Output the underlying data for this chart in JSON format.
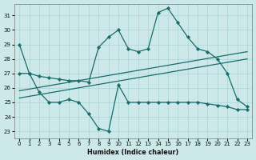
{
  "xlabel": "Humidex (Indice chaleur)",
  "bg_color": "#cce8e8",
  "line_color": "#1a6b6b",
  "grid_color": "#aad4d4",
  "ylim": [
    22.5,
    31.8
  ],
  "xlim": [
    -0.5,
    23.5
  ],
  "yticks": [
    23,
    24,
    25,
    26,
    27,
    28,
    29,
    30,
    31
  ],
  "xticks": [
    0,
    1,
    2,
    3,
    4,
    5,
    6,
    7,
    8,
    9,
    10,
    11,
    12,
    13,
    14,
    15,
    16,
    17,
    18,
    19,
    20,
    21,
    22,
    23
  ],
  "upper_x": [
    0,
    1,
    2,
    3,
    4,
    5,
    6,
    7,
    8,
    9,
    10,
    11,
    12,
    13,
    14,
    15,
    16,
    17,
    18,
    19,
    20,
    21,
    22,
    23
  ],
  "upper_y": [
    29.0,
    27.0,
    26.8,
    26.7,
    26.6,
    26.5,
    26.5,
    26.4,
    28.8,
    29.5,
    30.0,
    28.7,
    28.5,
    28.7,
    31.2,
    31.5,
    30.5,
    29.5,
    28.7,
    28.5,
    28.0,
    27.0,
    25.2,
    24.7
  ],
  "lower_x": [
    0,
    1,
    2,
    3,
    4,
    5,
    6,
    7,
    8,
    9,
    10,
    11,
    12,
    13,
    14,
    15,
    16,
    17,
    18,
    19,
    20,
    21,
    22,
    23
  ],
  "lower_y": [
    27.0,
    27.0,
    25.7,
    25.0,
    25.0,
    25.2,
    25.0,
    24.2,
    23.2,
    23.0,
    26.2,
    25.0,
    25.0,
    25.0,
    25.0,
    25.0,
    25.0,
    25.0,
    25.0,
    24.9,
    24.8,
    24.7,
    24.5,
    24.5
  ],
  "trend1_x": [
    0,
    23
  ],
  "trend1_y": [
    25.8,
    28.5
  ],
  "trend2_x": [
    0,
    23
  ],
  "trend2_y": [
    25.3,
    28.0
  ]
}
